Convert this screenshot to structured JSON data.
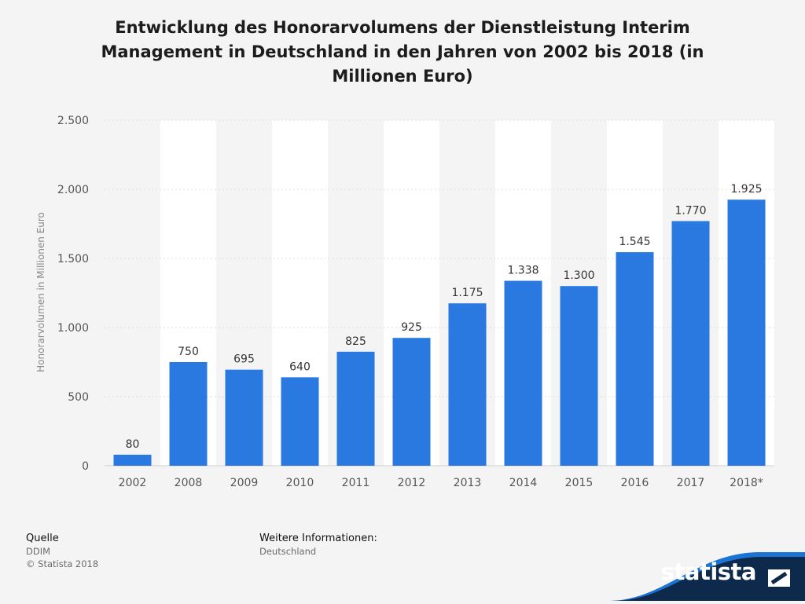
{
  "chart_data": {
    "type": "bar",
    "title": "Entwicklung des Honorarvolumens der Dienstleistung Interim Management in Deutschland in den Jahren von 2002 bis 2018 (in Millionen Euro)",
    "ylabel": "Honorarvolumen in Millionen Euro",
    "xlabel": "",
    "categories": [
      "2002",
      "2008",
      "2009",
      "2010",
      "2011",
      "2012",
      "2013",
      "2014",
      "2015",
      "2016",
      "2017",
      "2018*"
    ],
    "values": [
      80,
      750,
      695,
      640,
      825,
      925,
      1175,
      1338,
      1300,
      1545,
      1770,
      1925
    ],
    "value_labels": [
      "80",
      "750",
      "695",
      "640",
      "825",
      "925",
      "1.175",
      "1.338",
      "1.300",
      "1.545",
      "1.770",
      "1.925"
    ],
    "y_ticks": [
      0,
      500,
      1000,
      1500,
      2000,
      2500
    ],
    "y_tick_labels": [
      "0",
      "500",
      "1.000",
      "1.500",
      "2.000",
      "2.500"
    ],
    "ylim": [
      0,
      2500
    ],
    "grid": true,
    "legend": "none",
    "colors": {
      "bar": "#2979e0",
      "band": "#ffffff",
      "background": "#f4f4f4",
      "grid": "#dcdcdc"
    }
  },
  "footer": {
    "source_heading": "Quelle",
    "source_name": "DDIM",
    "copyright": "© Statista 2018",
    "info_heading": "Weitere Informationen:",
    "info_value": "Deutschland"
  },
  "brand": {
    "name": "statista",
    "color": "#0d2a4d",
    "accent": "#1b73d4"
  }
}
